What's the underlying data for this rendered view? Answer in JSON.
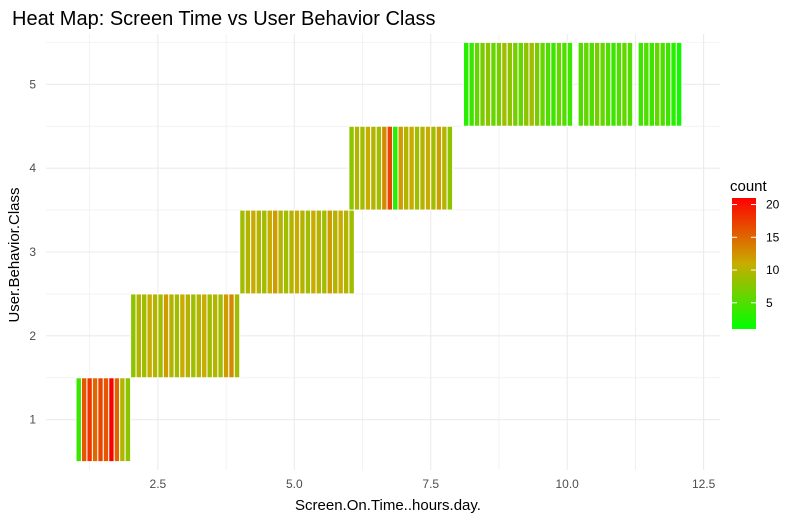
{
  "chart_data": {
    "type": "heatmap",
    "title": "Heat Map: Screen Time vs User Behavior Class",
    "xlabel": "Screen.On.Time..hours.day.",
    "ylabel": "User.Behavior.Class",
    "xlim": [
      0.45,
      12.8
    ],
    "ylim": [
      0.4,
      5.6
    ],
    "x_ticks": [
      2.5,
      5.0,
      7.5,
      10.0,
      12.5
    ],
    "x_tick_labels": [
      "2.5",
      "5.0",
      "7.5",
      "10.0",
      "12.5"
    ],
    "y_ticks": [
      1,
      2,
      3,
      4,
      5
    ],
    "y_tick_labels": [
      "1",
      "2",
      "3",
      "4",
      "5"
    ],
    "tile_width": 0.1,
    "grid": true,
    "legend": {
      "title": "count",
      "position": "right",
      "min": 1,
      "max": 21,
      "ticks": [
        5,
        10,
        15,
        20
      ],
      "tick_labels": [
        "5",
        "10",
        "15",
        "20"
      ],
      "low_color": "#00FF00",
      "high_color": "#FF0000"
    },
    "series": [
      {
        "class": 1,
        "x_start": 1.0,
        "counts": [
          4,
          16,
          18,
          15,
          17,
          16,
          21,
          15,
          10,
          8
        ]
      },
      {
        "class": 2,
        "x_start": 2.0,
        "counts": [
          8,
          10,
          9,
          11,
          10,
          9,
          12,
          10,
          9,
          11,
          10,
          9,
          10,
          11,
          9,
          10,
          9,
          12,
          13,
          9
        ]
      },
      {
        "class": 3,
        "x_start": 4.0,
        "counts": [
          9,
          10,
          11,
          10,
          9,
          11,
          12,
          10,
          9,
          10,
          11,
          10,
          9,
          11,
          10,
          9,
          12,
          10,
          11,
          10,
          9
        ]
      },
      {
        "class": 4,
        "x_start": 6.0,
        "counts": [
          8,
          10,
          9,
          11,
          10,
          9,
          13,
          17,
          3,
          12,
          10,
          11,
          9,
          10,
          11,
          9,
          12,
          10,
          8
        ]
      },
      {
        "class": 5,
        "x_start": 8.1,
        "counts": [
          3,
          4,
          6,
          7,
          8,
          6,
          7,
          9,
          8,
          7,
          6,
          8,
          9,
          7,
          6,
          5,
          4,
          6,
          5,
          4,
          null,
          5,
          6,
          5,
          7,
          6,
          5,
          4,
          5,
          6,
          5,
          null,
          4,
          5,
          4,
          6,
          5,
          4,
          3,
          2
        ]
      }
    ],
    "colors": {
      "grid": "#EBEBEB",
      "text": "#4D4D4D",
      "title": "#000000"
    }
  }
}
